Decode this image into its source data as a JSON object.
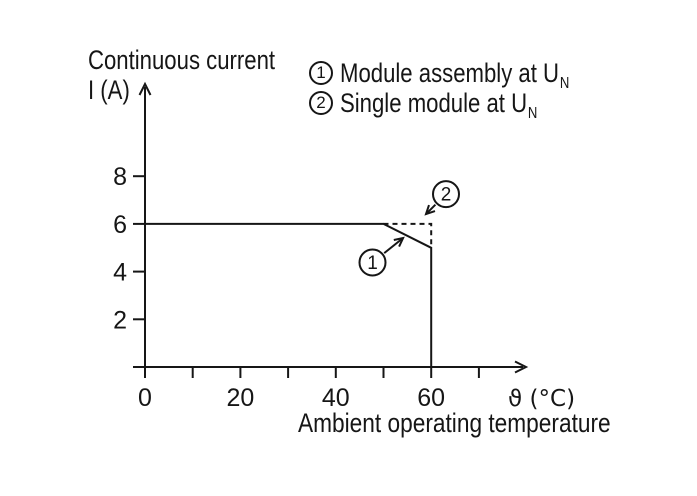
{
  "figure": {
    "background": "#ffffff",
    "ink": "#161616"
  },
  "ylabel": {
    "line1": "Continuous current",
    "line2": "I (A)"
  },
  "legend": {
    "items": [
      {
        "marker": "1",
        "label": "Module assembly at U",
        "sub": "N"
      },
      {
        "marker": "2",
        "label": "Single module at U",
        "sub": "N"
      }
    ]
  },
  "chart_data": {
    "type": "line",
    "title": "",
    "xlabel": "ϑ (°C)",
    "x_caption": "Ambient operating temperature",
    "ylabel": "Continuous current I (A)",
    "xlim": [
      0,
      79
    ],
    "ylim": [
      0,
      11.8
    ],
    "grid": false,
    "legend_position": "top-right",
    "x_ticks": [
      0,
      10,
      20,
      30,
      40,
      50,
      60,
      70
    ],
    "x_labeled_ticks": [
      0,
      20,
      40,
      60
    ],
    "y_ticks": [
      2,
      4,
      6,
      8
    ],
    "series": [
      {
        "name": "Module assembly at UN",
        "marker": "1",
        "style": "solid",
        "points": [
          [
            0,
            6
          ],
          [
            50,
            6
          ],
          [
            60,
            5
          ],
          [
            60,
            0
          ]
        ]
      },
      {
        "name": "Single module at UN",
        "marker": "2",
        "style": "dashed",
        "points": [
          [
            50,
            6
          ],
          [
            60,
            6
          ],
          [
            60,
            5
          ]
        ]
      }
    ],
    "annotations": [
      {
        "marker": "1",
        "circle_at": [
          47.7,
          4.38
        ],
        "arrow_to": [
          54.1,
          5.41
        ]
      },
      {
        "marker": "2",
        "circle_at": [
          63.1,
          7.25
        ],
        "arrow_to": [
          58.9,
          6.41
        ]
      }
    ]
  }
}
